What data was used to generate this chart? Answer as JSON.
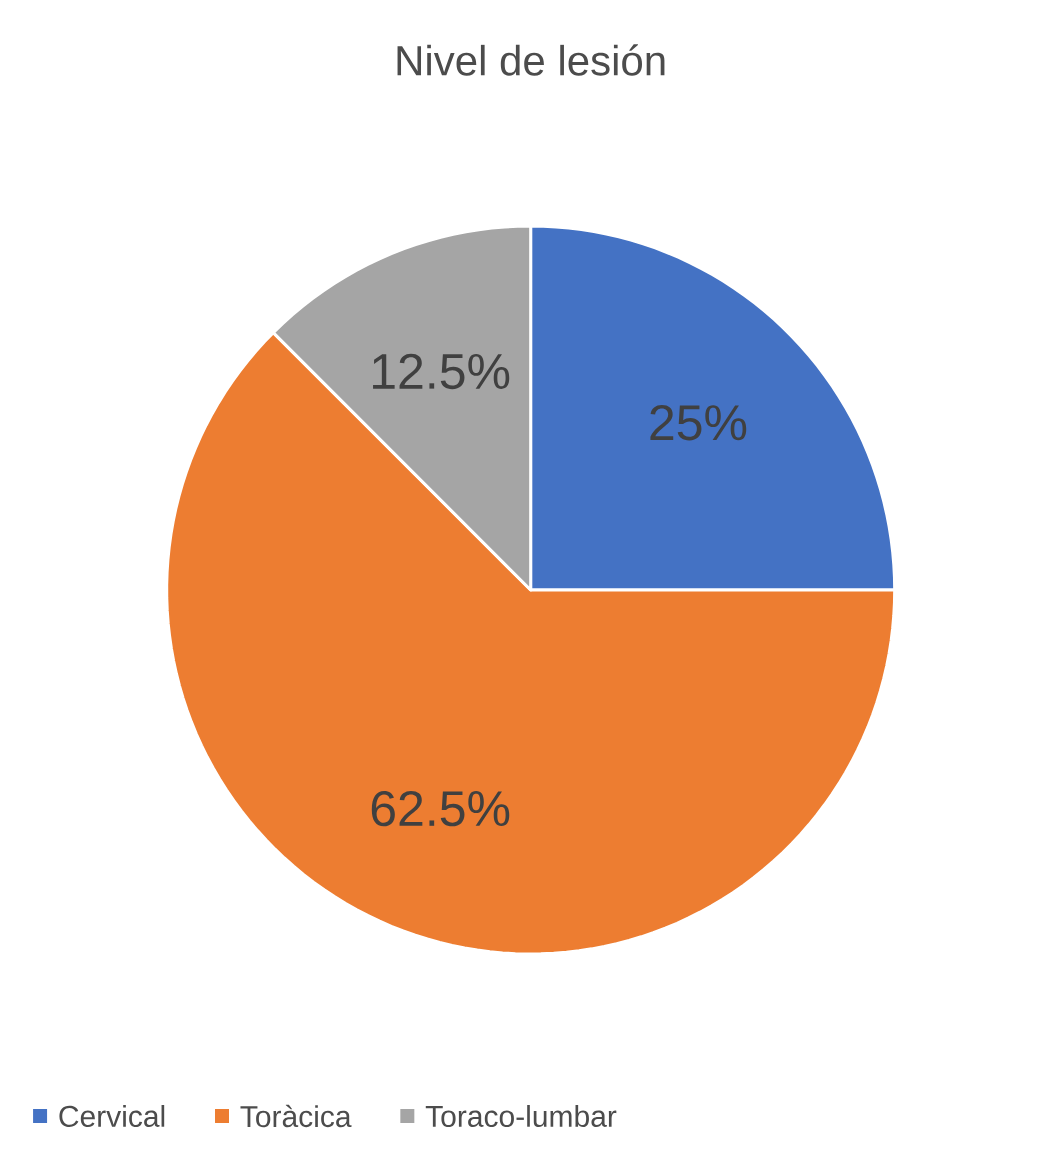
{
  "chart_data": {
    "type": "pie",
    "title": "Nivel de lesión",
    "categories": [
      "Cervical",
      "Toràcica",
      "Toraco-lumbar"
    ],
    "values": [
      25,
      62.5,
      12.5
    ],
    "colors": [
      "#4472c4",
      "#ed7d31",
      "#a5a5a5"
    ],
    "value_labels": [
      "25%",
      "62.5%",
      "12.5%"
    ],
    "legend": "bottom"
  }
}
